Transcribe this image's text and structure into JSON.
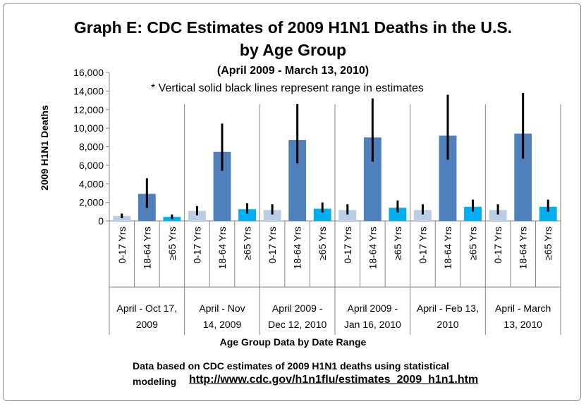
{
  "chart_data": {
    "type": "bar",
    "title": "Graph E: CDC Estimates of 2009 H1N1 Deaths in the U.S.",
    "title_line2": "by Age Group",
    "subtitle": "(April 2009 - March 13, 2010)",
    "note": "* Vertical solid black lines represent range in estimates",
    "ylabel": "2009 H1N1 Deaths",
    "xlabel": "Age Group Data by Date Range",
    "ylim": [
      0,
      16000
    ],
    "yticks": [
      "0",
      "2,000",
      "4,000",
      "6,000",
      "8,000",
      "10,000",
      "12,000",
      "14,000",
      "16,000"
    ],
    "grid": false,
    "age_groups": [
      "0-17 Yrs",
      "18-64 Yrs",
      "≥65 Yrs"
    ],
    "colors": [
      "#b9cde5",
      "#4f81bd",
      "#00b0f0"
    ],
    "groups": [
      {
        "label_line1": "April - Oct 17,",
        "label_line2": "2009",
        "values": [
          540,
          2920,
          440
        ],
        "ranges": [
          [
            300,
            800
          ],
          [
            1400,
            4600
          ],
          [
            200,
            700
          ]
        ]
      },
      {
        "label_line1": "April - Nov",
        "label_line2": "14, 2009",
        "values": [
          1090,
          7450,
          1270
        ],
        "ranges": [
          [
            600,
            1600
          ],
          [
            5400,
            10500
          ],
          [
            800,
            1900
          ]
        ]
      },
      {
        "label_line1": "April 2009 -",
        "label_line2": "Dec 12, 2010",
        "values": [
          1180,
          8720,
          1320
        ],
        "ranges": [
          [
            700,
            1800
          ],
          [
            6200,
            12600
          ],
          [
            900,
            2000
          ]
        ]
      },
      {
        "label_line1": "April 2009 -",
        "label_line2": "Jan 16, 2010",
        "values": [
          1180,
          9000,
          1420
        ],
        "ranges": [
          [
            700,
            1800
          ],
          [
            6400,
            13200
          ],
          [
            900,
            2200
          ]
        ]
      },
      {
        "label_line1": "April - Feb 13,",
        "label_line2": "2010",
        "values": [
          1180,
          9200,
          1530
        ],
        "ranges": [
          [
            700,
            1800
          ],
          [
            6600,
            13600
          ],
          [
            1000,
            2300
          ]
        ]
      },
      {
        "label_line1": "April - March",
        "label_line2": "13, 2010",
        "values": [
          1180,
          9420,
          1530
        ],
        "ranges": [
          [
            700,
            1800
          ],
          [
            6700,
            13800
          ],
          [
            1000,
            2300
          ]
        ]
      }
    ]
  },
  "footnote": {
    "line1": "Data based on CDC estimates of 2009 H1N1 deaths using statistical",
    "line2_prefix": "modeling",
    "link": "http://www.cdc.gov/h1n1flu/estimates_2009_h1n1.htm"
  }
}
